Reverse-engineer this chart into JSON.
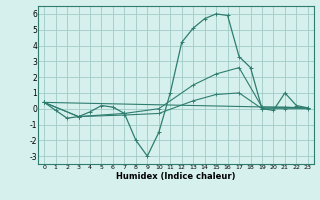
{
  "title": "",
  "xlabel": "Humidex (Indice chaleur)",
  "bg_color": "#d6f0ee",
  "grid_color": "#a0ccc8",
  "line_color": "#2e7d6e",
  "xlim": [
    -0.5,
    23.5
  ],
  "ylim": [
    -3.5,
    6.5
  ],
  "yticks": [
    -3,
    -2,
    -1,
    0,
    1,
    2,
    3,
    4,
    5,
    6
  ],
  "xticks": [
    0,
    1,
    2,
    3,
    4,
    5,
    6,
    7,
    8,
    9,
    10,
    11,
    12,
    13,
    14,
    15,
    16,
    17,
    18,
    19,
    20,
    21,
    22,
    23
  ],
  "lines": [
    {
      "x": [
        0,
        1,
        2,
        3,
        4,
        5,
        6,
        7,
        8,
        9,
        10,
        11,
        12,
        13,
        14,
        15,
        16,
        17,
        18,
        19,
        20,
        21,
        22,
        23
      ],
      "y": [
        0.4,
        -0.1,
        -0.6,
        -0.5,
        -0.2,
        0.2,
        0.1,
        -0.3,
        -2.0,
        -3.0,
        -1.5,
        1.0,
        4.2,
        5.1,
        5.7,
        6.0,
        5.9,
        3.3,
        2.6,
        0.0,
        -0.1,
        1.0,
        0.2,
        0.05
      ]
    },
    {
      "x": [
        0,
        3,
        7,
        10,
        13,
        15,
        17,
        19,
        21,
        23
      ],
      "y": [
        0.4,
        -0.5,
        -0.3,
        0.0,
        1.5,
        2.2,
        2.6,
        0.1,
        0.1,
        0.05
      ]
    },
    {
      "x": [
        0,
        3,
        7,
        10,
        13,
        15,
        17,
        19,
        21,
        23
      ],
      "y": [
        0.4,
        -0.5,
        -0.4,
        -0.3,
        0.5,
        0.9,
        1.0,
        0.0,
        0.0,
        0.0
      ]
    },
    {
      "x": [
        0,
        23
      ],
      "y": [
        0.4,
        0.05
      ]
    }
  ]
}
